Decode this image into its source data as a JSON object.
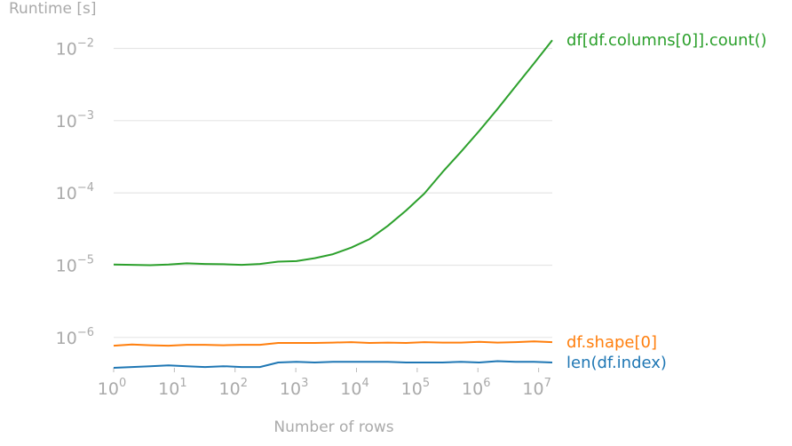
{
  "chart_data": {
    "type": "line",
    "ylabel": "Runtime [s]",
    "xlabel": "Number of rows",
    "x_scale": "log",
    "y_scale": "log",
    "xlim": [
      1,
      16777216
    ],
    "ylim": [
      3.8e-07,
      0.02
    ],
    "grid": "horizontal",
    "legend": "inline labels at right end of each line",
    "x_ticks": [
      {
        "value": 1,
        "base": "10",
        "exp": "0"
      },
      {
        "value": 10,
        "base": "10",
        "exp": "1"
      },
      {
        "value": 100,
        "base": "10",
        "exp": "2"
      },
      {
        "value": 1000,
        "base": "10",
        "exp": "3"
      },
      {
        "value": 10000,
        "base": "10",
        "exp": "4"
      },
      {
        "value": 100000,
        "base": "10",
        "exp": "5"
      },
      {
        "value": 1000000,
        "base": "10",
        "exp": "6"
      },
      {
        "value": 10000000,
        "base": "10",
        "exp": "7"
      }
    ],
    "y_ticks": [
      {
        "value": 1e-06,
        "base": "10",
        "exp": "−6"
      },
      {
        "value": 1e-05,
        "base": "10",
        "exp": "−5"
      },
      {
        "value": 0.0001,
        "base": "10",
        "exp": "−4"
      },
      {
        "value": 0.001,
        "base": "10",
        "exp": "−3"
      },
      {
        "value": 0.01,
        "base": "10",
        "exp": "−2"
      }
    ],
    "x": [
      1,
      2,
      4,
      8,
      16,
      32,
      64,
      128,
      256,
      512,
      1024,
      2048,
      4096,
      8192,
      16384,
      32768,
      65536,
      131072,
      262144,
      524288,
      1048576,
      2097152,
      4194304,
      8388608,
      16777216
    ],
    "series": [
      {
        "name": "df[df.columns[0]].count()",
        "color": "#2ca02c",
        "values": [
          1.02e-05,
          1.01e-05,
          1e-05,
          1.02e-05,
          1.06e-05,
          1.04e-05,
          1.03e-05,
          1.01e-05,
          1.04e-05,
          1.12e-05,
          1.14e-05,
          1.25e-05,
          1.42e-05,
          1.75e-05,
          2.3e-05,
          3.5e-05,
          5.7e-05,
          9.8e-05,
          0.000195,
          0.00037,
          0.00072,
          0.00145,
          0.003,
          0.0062,
          0.013
        ]
      },
      {
        "name": "df.shape[0]",
        "color": "#ff7f0e",
        "values": [
          7.7e-07,
          8e-07,
          7.8e-07,
          7.7e-07,
          7.9e-07,
          7.9e-07,
          7.8e-07,
          7.9e-07,
          7.9e-07,
          8.4e-07,
          8.4e-07,
          8.4e-07,
          8.5e-07,
          8.6e-07,
          8.4e-07,
          8.5e-07,
          8.4e-07,
          8.6e-07,
          8.5e-07,
          8.5e-07,
          8.7e-07,
          8.5e-07,
          8.6e-07,
          8.8e-07,
          8.6e-07
        ]
      },
      {
        "name": "len(df.index)",
        "color": "#1f77b4",
        "values": [
          3.8e-07,
          3.9e-07,
          4e-07,
          4.1e-07,
          4e-07,
          3.9e-07,
          4e-07,
          3.9e-07,
          3.9e-07,
          4.5e-07,
          4.6e-07,
          4.5e-07,
          4.6e-07,
          4.6e-07,
          4.6e-07,
          4.6e-07,
          4.5e-07,
          4.5e-07,
          4.5e-07,
          4.6e-07,
          4.5e-07,
          4.7e-07,
          4.6e-07,
          4.6e-07,
          4.5e-07
        ]
      }
    ]
  }
}
